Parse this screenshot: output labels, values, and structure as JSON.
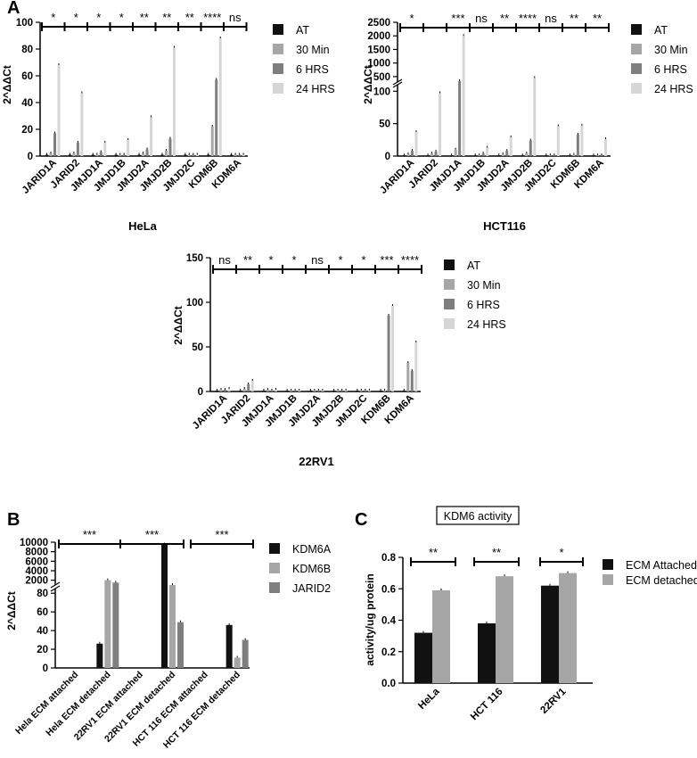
{
  "panel_labels": {
    "a": "A",
    "b": "B",
    "c": "C"
  },
  "colors": {
    "AT": "#111111",
    "30 Min": "#a6a6a6",
    "6 HRS": "#7f7f7f",
    "24 HRS": "#d6d6d6",
    "KDM6A": "#111111",
    "KDM6B": "#a6a6a6",
    "JARID2": "#7f7f7f",
    "ECM Attached": "#111111",
    "ECM detached": "#a6a6a6"
  },
  "chart_data": [
    {
      "id": "hela",
      "type": "bar",
      "title": "HeLa",
      "ylabel": "2^ΔΔCt",
      "ylim": [
        0,
        100
      ],
      "yticks": [
        "0",
        "20",
        "40",
        "60",
        "80",
        "100"
      ],
      "categories": [
        "JARID1A",
        "JARID2",
        "JMJD1A",
        "JMJD1B",
        "JMJD2A",
        "JMJD2B",
        "JMJD2C",
        "KDM6B",
        "KDM6A"
      ],
      "series": [
        {
          "name": "AT",
          "values": [
            1,
            1,
            1,
            1,
            1,
            1,
            1,
            1,
            1
          ]
        },
        {
          "name": "30 Min",
          "values": [
            2,
            2,
            1,
            1,
            2,
            4,
            1,
            22,
            1
          ]
        },
        {
          "name": "6 HRS",
          "values": [
            17,
            10,
            3,
            1,
            5,
            13,
            1,
            57,
            1
          ]
        },
        {
          "name": "24 HRS",
          "values": [
            68,
            47,
            10,
            12,
            29,
            81,
            1,
            88,
            1
          ]
        }
      ],
      "significance": [
        "*",
        "*",
        "*",
        "*",
        "**",
        "**",
        "**",
        "****",
        "ns"
      ],
      "legend_position": "right"
    },
    {
      "id": "hct116",
      "type": "bar",
      "title": "HCT116",
      "ylabel": "2^ΔΔCt",
      "yticks_lower": [
        "0",
        "50",
        "100"
      ],
      "yticks_upper": [
        "500",
        "1000",
        "1500",
        "2000",
        "2500"
      ],
      "axis_break": [
        110,
        300
      ],
      "categories": [
        "JARID1A",
        "JARID2",
        "JMJD1A",
        "JMJD1B",
        "JMJD2A",
        "JMJD2B",
        "JMJD2C",
        "KDM6B",
        "KDM6A"
      ],
      "series": [
        {
          "name": "AT",
          "values": [
            1,
            1,
            1,
            1,
            1,
            1,
            1,
            1,
            1
          ]
        },
        {
          "name": "30 Min",
          "values": [
            3,
            4,
            10,
            1,
            3,
            4,
            1,
            2,
            1
          ]
        },
        {
          "name": "6 HRS",
          "values": [
            8,
            7,
            330,
            4,
            8,
            24,
            1,
            33,
            1
          ]
        },
        {
          "name": "24 HRS",
          "values": [
            37,
            97,
            2000,
            13,
            29,
            450,
            46,
            47,
            26
          ]
        }
      ],
      "significance": [
        "*",
        "",
        "***",
        "ns",
        "**",
        "****",
        "ns",
        "**",
        "**"
      ],
      "legend_position": "right"
    },
    {
      "id": "22rv1",
      "type": "bar",
      "title": "22RV1",
      "ylabel": "2^ΔΔCt",
      "ylim": [
        0,
        150
      ],
      "yticks": [
        "0",
        "50",
        "100",
        "150"
      ],
      "categories": [
        "JARID1A",
        "JARID2",
        "JMJD1A",
        "JMJD1B",
        "JMJD2A",
        "JMJD2B",
        "JMJD2C",
        "KDM6B",
        "KDM6A"
      ],
      "series": [
        {
          "name": "AT",
          "values": [
            1,
            1,
            1,
            1,
            1,
            1,
            1,
            1,
            1
          ]
        },
        {
          "name": "30 Min",
          "values": [
            2,
            3,
            2,
            1,
            1,
            1,
            1,
            1,
            32
          ]
        },
        {
          "name": "6 HRS",
          "values": [
            2,
            8,
            1,
            1,
            1,
            1,
            1,
            85,
            23
          ]
        },
        {
          "name": "24 HRS",
          "values": [
            3,
            12,
            2,
            1,
            1,
            1,
            1,
            96,
            55
          ]
        }
      ],
      "significance": [
        "ns",
        "**",
        "*",
        "*",
        "ns",
        "*",
        "*",
        "***",
        "****"
      ],
      "legend_position": "right"
    },
    {
      "id": "panel-b",
      "type": "bar",
      "title": "",
      "ylabel": "2^ΔΔCt",
      "yticks_lower": [
        "0",
        "20",
        "40",
        "60",
        "80"
      ],
      "yticks_upper": [
        "2000",
        "4000",
        "6000",
        "8000",
        "10000"
      ],
      "axis_break": [
        85,
        1000
      ],
      "categories": [
        "Hela ECM attached",
        "Hela ECM detached",
        "22RV1 ECM attached",
        "22RV1 ECM detached",
        "HCT 116 ECM attached",
        "HCT 116 ECM detached"
      ],
      "series": [
        {
          "name": "KDM6A",
          "values": [
            0,
            26,
            0,
            9500,
            0,
            46
          ]
        },
        {
          "name": "KDM6B",
          "values": [
            0,
            2000,
            0,
            1000,
            0,
            11
          ]
        },
        {
          "name": "JARID2",
          "values": [
            0,
            1500,
            0,
            49,
            0,
            30
          ]
        }
      ],
      "significance": [
        "***",
        "***",
        "***"
      ],
      "legend_position": "right"
    },
    {
      "id": "panel-c",
      "type": "bar",
      "title": "KDM6 activity",
      "ylabel": "activity/ug protein",
      "ylim": [
        0,
        0.8
      ],
      "yticks": [
        "0.0",
        "0.2",
        "0.4",
        "0.6",
        "0.8"
      ],
      "categories": [
        "HeLa",
        "HCT 116",
        "22RV1"
      ],
      "series": [
        {
          "name": "ECM Attached",
          "values": [
            0.32,
            0.38,
            0.62
          ]
        },
        {
          "name": "ECM detached",
          "values": [
            0.59,
            0.68,
            0.7
          ]
        }
      ],
      "significance": [
        "**",
        "**",
        "*"
      ],
      "legend_position": "right"
    }
  ]
}
